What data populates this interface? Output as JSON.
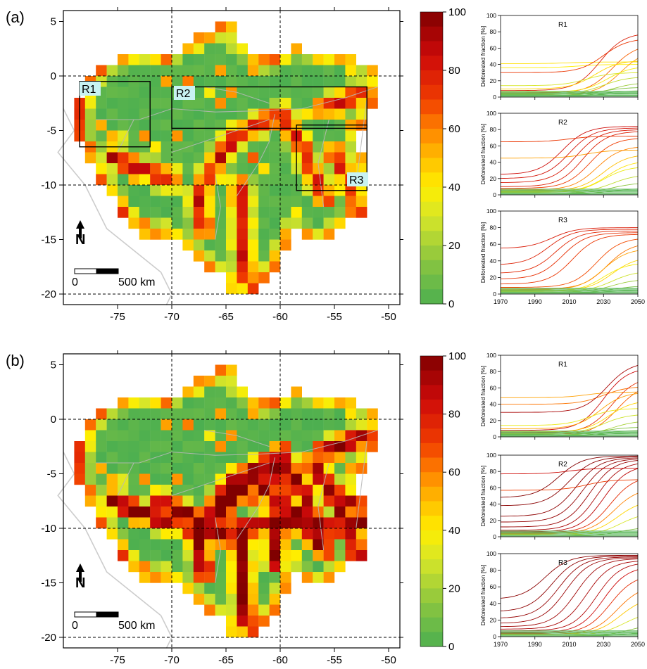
{
  "panels": [
    {
      "label": "(a)",
      "scale_bar": {
        "zero": "0",
        "end": "500 km"
      },
      "north_arrow": "N",
      "regions": [
        {
          "name": "R1",
          "lon": [
            -78.5,
            -72.0
          ],
          "lat": [
            -6.5,
            -0.5
          ]
        },
        {
          "name": "R2",
          "lon": [
            -70.0,
            -52.0
          ],
          "lat": [
            -4.8,
            -1.0
          ]
        },
        {
          "name": "R3",
          "lon": [
            -58.5,
            -52.0
          ],
          "lat": [
            -10.5,
            -4.5
          ]
        }
      ]
    },
    {
      "label": "(b)",
      "scale_bar": {
        "zero": "0",
        "end": "500 km"
      },
      "north_arrow": "N",
      "regions": []
    }
  ],
  "colorbar": {
    "ticks": [
      "100",
      "80",
      "60",
      "40",
      "20",
      "0"
    ]
  },
  "chart_data": [
    {
      "type": "heatmap",
      "panel": "(a)",
      "description_of_values": "Deforested fraction per grid cell, 0–100 %",
      "x_ticks": [
        "-75",
        "-70",
        "-65",
        "-60",
        "-55",
        "-50"
      ],
      "y_ticks": [
        "5",
        "0",
        "-5",
        "-10",
        "-15",
        "-20"
      ],
      "xlim": [
        -80,
        -49
      ],
      "ylim": [
        -21,
        6
      ],
      "grid_lines": {
        "lon": [
          -70,
          -60
        ],
        "lat": [
          0,
          -10,
          -20
        ]
      },
      "colorbar_range": [
        0,
        100
      ]
    },
    {
      "type": "line",
      "panel": "(a)",
      "subplots": [
        {
          "title": "R1",
          "ylabel": "Deforested fraction [%]",
          "ylim": [
            0,
            100
          ],
          "y_ticks": [
            "0",
            "20",
            "40",
            "60",
            "80",
            "100"
          ],
          "series": [
            {
              "start": 41,
              "end": 43,
              "mid": 2010
            },
            {
              "start": 36,
              "end": 40,
              "mid": 2015
            },
            {
              "start": 30,
              "end": 72,
              "mid": 2030
            },
            {
              "start": 8,
              "end": 79,
              "mid": 2028
            },
            {
              "start": 5,
              "end": 65,
              "mid": 2035
            },
            {
              "start": 3,
              "end": 58,
              "mid": 2040
            },
            {
              "start": 10,
              "end": 45,
              "mid": 2025
            },
            {
              "start": 6,
              "end": 38,
              "mid": 2032
            },
            {
              "start": 14,
              "end": 30,
              "mid": 2020
            },
            {
              "start": 4,
              "end": 25,
              "mid": 2030
            },
            {
              "start": 2,
              "end": 18,
              "mid": 2035
            },
            {
              "start": 3,
              "end": 12,
              "mid": 2030
            },
            {
              "start": 1,
              "end": 8,
              "mid": 2030
            },
            {
              "start": 1,
              "end": 5,
              "mid": 2030
            }
          ]
        },
        {
          "title": "R2",
          "ylabel": "Deforested fraction [%]",
          "ylim": [
            0,
            100
          ],
          "y_ticks": [
            "0",
            "20",
            "40",
            "60",
            "80",
            "100"
          ],
          "series": [
            {
              "start": 65,
              "end": 72,
              "mid": 2010
            },
            {
              "start": 45,
              "end": 55,
              "mid": 2020
            },
            {
              "start": 25,
              "end": 84,
              "mid": 2006
            },
            {
              "start": 20,
              "end": 82,
              "mid": 2010
            },
            {
              "start": 15,
              "end": 80,
              "mid": 2014
            },
            {
              "start": 10,
              "end": 78,
              "mid": 2018
            },
            {
              "start": 8,
              "end": 70,
              "mid": 2022
            },
            {
              "start": 6,
              "end": 60,
              "mid": 2026
            },
            {
              "start": 5,
              "end": 50,
              "mid": 2030
            },
            {
              "start": 4,
              "end": 42,
              "mid": 2032
            },
            {
              "start": 3,
              "end": 35,
              "mid": 2030
            },
            {
              "start": 3,
              "end": 25,
              "mid": 2035
            },
            {
              "start": 2,
              "end": 15,
              "mid": 2035
            },
            {
              "start": 1,
              "end": 8,
              "mid": 2035
            }
          ]
        },
        {
          "title": "R3",
          "ylabel": "Deforested fraction [%]",
          "ylim": [
            0,
            100
          ],
          "y_ticks": [
            "0",
            "20",
            "40",
            "60",
            "80",
            "100"
          ],
          "series": [
            {
              "start": 55,
              "end": 80,
              "mid": 2000
            },
            {
              "start": 35,
              "end": 78,
              "mid": 1998
            },
            {
              "start": 25,
              "end": 76,
              "mid": 2002
            },
            {
              "start": 18,
              "end": 74,
              "mid": 2006
            },
            {
              "start": 12,
              "end": 72,
              "mid": 2012
            },
            {
              "start": 8,
              "end": 68,
              "mid": 2026
            },
            {
              "start": 6,
              "end": 62,
              "mid": 2032
            },
            {
              "start": 5,
              "end": 55,
              "mid": 2030
            },
            {
              "start": 4,
              "end": 45,
              "mid": 2035
            },
            {
              "start": 3,
              "end": 38,
              "mid": 2030
            },
            {
              "start": 3,
              "end": 28,
              "mid": 2035
            },
            {
              "start": 2,
              "end": 18,
              "mid": 2035
            },
            {
              "start": 1,
              "end": 10,
              "mid": 2035
            },
            {
              "start": 1,
              "end": 5,
              "mid": 2035
            }
          ]
        }
      ],
      "x_ticks": [
        "1970",
        "1990",
        "2010",
        "2030",
        "2050"
      ]
    },
    {
      "type": "heatmap",
      "panel": "(b)",
      "description_of_values": "Deforested fraction per grid cell, 0–100 %",
      "x_ticks": [
        "-75",
        "-70",
        "-65",
        "-60",
        "-55",
        "-50"
      ],
      "y_ticks": [
        "5",
        "0",
        "-5",
        "-10",
        "-15",
        "-20"
      ],
      "xlim": [
        -80,
        -49
      ],
      "ylim": [
        -21,
        6
      ],
      "grid_lines": {
        "lon": [
          -70,
          -60
        ],
        "lat": [
          0,
          -10,
          -20
        ]
      },
      "colorbar_range": [
        0,
        100
      ]
    },
    {
      "type": "line",
      "panel": "(b)",
      "subplots": [
        {
          "title": "R1",
          "ylabel": "Deforested fraction [%]",
          "ylim": [
            0,
            100
          ],
          "y_ticks": [
            "0",
            "20",
            "40",
            "60",
            "80",
            "100"
          ],
          "series": [
            {
              "start": 48,
              "end": 55,
              "mid": 2020
            },
            {
              "start": 40,
              "end": 62,
              "mid": 2030
            },
            {
              "start": 30,
              "end": 92,
              "mid": 2032
            },
            {
              "start": 8,
              "end": 85,
              "mid": 2030
            },
            {
              "start": 5,
              "end": 74,
              "mid": 2035
            },
            {
              "start": 3,
              "end": 65,
              "mid": 2038
            },
            {
              "start": 10,
              "end": 55,
              "mid": 2028
            },
            {
              "start": 6,
              "end": 45,
              "mid": 2033
            },
            {
              "start": 14,
              "end": 35,
              "mid": 2022
            },
            {
              "start": 4,
              "end": 28,
              "mid": 2030
            },
            {
              "start": 2,
              "end": 20,
              "mid": 2035
            },
            {
              "start": 3,
              "end": 12,
              "mid": 2030
            },
            {
              "start": 1,
              "end": 8,
              "mid": 2030
            },
            {
              "start": 1,
              "end": 5,
              "mid": 2030
            }
          ]
        },
        {
          "title": "R2",
          "ylabel": "Deforested fraction [%]",
          "ylim": [
            0,
            100
          ],
          "y_ticks": [
            "0",
            "20",
            "40",
            "60",
            "80",
            "100"
          ],
          "series": [
            {
              "start": 77,
              "end": 84,
              "mid": 2010
            },
            {
              "start": 57,
              "end": 70,
              "mid": 2020
            },
            {
              "start": 48,
              "end": 99,
              "mid": 2004
            },
            {
              "start": 38,
              "end": 98,
              "mid": 2010
            },
            {
              "start": 25,
              "end": 97,
              "mid": 2014
            },
            {
              "start": 18,
              "end": 96,
              "mid": 2018
            },
            {
              "start": 12,
              "end": 95,
              "mid": 2022
            },
            {
              "start": 8,
              "end": 92,
              "mid": 2026
            },
            {
              "start": 6,
              "end": 88,
              "mid": 2030
            },
            {
              "start": 5,
              "end": 75,
              "mid": 2034
            },
            {
              "start": 4,
              "end": 60,
              "mid": 2036
            },
            {
              "start": 3,
              "end": 45,
              "mid": 2038
            },
            {
              "start": 2,
              "end": 30,
              "mid": 2040
            },
            {
              "start": 1,
              "end": 12,
              "mid": 2040
            }
          ]
        },
        {
          "title": "R3",
          "ylabel": "Deforested fraction [%]",
          "ylim": [
            0,
            100
          ],
          "y_ticks": [
            "0",
            "20",
            "40",
            "60",
            "80",
            "100"
          ],
          "series": [
            {
              "start": 45,
              "end": 98,
              "mid": 1996
            },
            {
              "start": 30,
              "end": 97,
              "mid": 2000
            },
            {
              "start": 22,
              "end": 96,
              "mid": 2004
            },
            {
              "start": 16,
              "end": 95,
              "mid": 2008
            },
            {
              "start": 12,
              "end": 94,
              "mid": 2014
            },
            {
              "start": 9,
              "end": 92,
              "mid": 2020
            },
            {
              "start": 7,
              "end": 90,
              "mid": 2026
            },
            {
              "start": 5,
              "end": 85,
              "mid": 2030
            },
            {
              "start": 4,
              "end": 75,
              "mid": 2034
            },
            {
              "start": 3,
              "end": 62,
              "mid": 2038
            },
            {
              "start": 3,
              "end": 48,
              "mid": 2040
            },
            {
              "start": 2,
              "end": 30,
              "mid": 2042
            },
            {
              "start": 1,
              "end": 15,
              "mid": 2045
            },
            {
              "start": 1,
              "end": 6,
              "mid": 2045
            }
          ]
        }
      ],
      "x_ticks": [
        "1970",
        "1990",
        "2010",
        "2030",
        "2050"
      ]
    }
  ]
}
